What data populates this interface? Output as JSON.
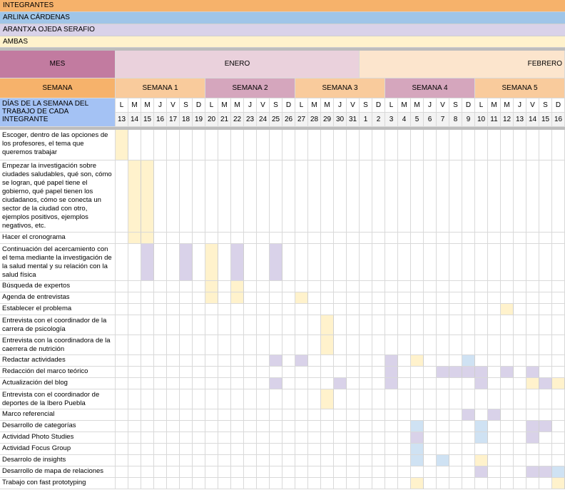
{
  "legend": {
    "integrantes": "INTEGRANTES",
    "member1": "ARLINA CÁRDENAS",
    "member2": "ARANTXA OJEDA SERAFIO",
    "both": "AMBAS"
  },
  "colors": {
    "integrantes": "#f6b26b",
    "member1": "#9fc5e8",
    "member2": "#d9d2e9",
    "both": "#fff2cc",
    "mes_label": "#c27ba0",
    "enero": "#ead1dc",
    "febrero": "#fce5cd",
    "semana_label": "#f6b26b",
    "week_a": "#f9cb9c",
    "week_b": "#d5a6bd",
    "dias_label": "#a4c2f4",
    "mark_yellow": "#fff2cc",
    "mark_purple": "#d9d2e9",
    "mark_blue": "#cfe2f3"
  },
  "header": {
    "mes_label": "MES",
    "enero": "ENERO",
    "febrero": "FEBRERO",
    "semana_label": "SEMANA",
    "weeks": [
      "SEMANA 1",
      "SEMANA 2",
      "SEMANA 3",
      "SEMANA 4",
      "SEMANA 5"
    ],
    "dias_label": "DÍAS DE LA SEMANA DEL TRABAJO DE CADA INTEGRANTE",
    "day_letters": [
      "L",
      "M",
      "M",
      "J",
      "V",
      "S",
      "D",
      "L",
      "M",
      "M",
      "J",
      "V",
      "S",
      "D",
      "L",
      "M",
      "M",
      "J",
      "V",
      "S",
      "D",
      "L",
      "M",
      "M",
      "J",
      "V",
      "S",
      "D",
      "L",
      "M",
      "M",
      "J",
      "V",
      "S",
      "D"
    ],
    "day_numbers": [
      "13",
      "14",
      "15",
      "16",
      "17",
      "18",
      "19",
      "20",
      "21",
      "22",
      "23",
      "24",
      "25",
      "26",
      "27",
      "28",
      "29",
      "30",
      "31",
      "1",
      "2",
      "3",
      "4",
      "5",
      "6",
      "7",
      "8",
      "9",
      "10",
      "11",
      "12",
      "13",
      "14",
      "15",
      "16"
    ]
  },
  "tasks": [
    {
      "label": "Escoger, dentro de las opciones de los profesores, el tema que queremos trabajar",
      "marks": [
        [
          0,
          "y"
        ]
      ]
    },
    {
      "label": "Empezar la investigación sobre ciudades saludables, qué son, cómo se logran, qué papel tiene el gobierno, qué papel tienen los ciudadanos, cómo se conecta un sector de la ciudad con otro, ejemplos positivos, ejemplos negativos, etc.",
      "marks": [
        [
          1,
          "y"
        ],
        [
          2,
          "y"
        ]
      ]
    },
    {
      "label": "Hacer el cronograma",
      "marks": [
        [
          1,
          "y"
        ],
        [
          2,
          "y"
        ]
      ]
    },
    {
      "label": "Continuación del acercamiento con el tema mediante la investigación de la salud mental y su relación con la salud física",
      "marks": [
        [
          2,
          "p"
        ],
        [
          5,
          "p"
        ],
        [
          7,
          "y"
        ],
        [
          9,
          "p"
        ],
        [
          12,
          "p"
        ]
      ]
    },
    {
      "label": "Búsqueda de expertos",
      "marks": [
        [
          7,
          "y"
        ],
        [
          9,
          "y"
        ]
      ]
    },
    {
      "label": "Agenda de entrevistas",
      "marks": [
        [
          7,
          "y"
        ],
        [
          9,
          "y"
        ],
        [
          14,
          "y"
        ]
      ]
    },
    {
      "label": "Establecer el problema",
      "marks": [
        [
          30,
          "y"
        ]
      ]
    },
    {
      "label": "Entrevista con el coordinador de la carrera de psicología",
      "marks": [
        [
          16,
          "y"
        ]
      ]
    },
    {
      "label": "Entrevista con la coordinadora de la caerrera de nutrición",
      "marks": [
        [
          16,
          "y"
        ]
      ]
    },
    {
      "label": "Redactar actividades",
      "marks": [
        [
          12,
          "p"
        ],
        [
          14,
          "p"
        ],
        [
          21,
          "p"
        ],
        [
          23,
          "y"
        ],
        [
          27,
          "b"
        ]
      ]
    },
    {
      "label": "Redacción del marco teórico",
      "marks": [
        [
          21,
          "p"
        ],
        [
          25,
          "p"
        ],
        [
          26,
          "p"
        ],
        [
          27,
          "p"
        ],
        [
          28,
          "p"
        ],
        [
          30,
          "p"
        ],
        [
          32,
          "p"
        ]
      ]
    },
    {
      "label": "Actualización del blog",
      "marks": [
        [
          12,
          "p"
        ],
        [
          17,
          "p"
        ],
        [
          21,
          "p"
        ],
        [
          28,
          "p"
        ],
        [
          32,
          "y"
        ],
        [
          33,
          "p"
        ],
        [
          34,
          "y"
        ]
      ]
    },
    {
      "label": "Entrevista con el coordinador de deportes de la Ibero Puebla",
      "marks": [
        [
          16,
          "y"
        ]
      ]
    },
    {
      "label": "Marco referencial",
      "marks": [
        [
          27,
          "p"
        ],
        [
          29,
          "p"
        ]
      ]
    },
    {
      "label": "Desarrollo de categorías",
      "marks": [
        [
          23,
          "b"
        ],
        [
          28,
          "b"
        ],
        [
          32,
          "p"
        ],
        [
          33,
          "p"
        ]
      ]
    },
    {
      "label": "Actividad Photo Studies",
      "marks": [
        [
          23,
          "p"
        ],
        [
          28,
          "b"
        ],
        [
          32,
          "p"
        ]
      ]
    },
    {
      "label": "Actividad Focus Group",
      "marks": [
        [
          23,
          "b"
        ]
      ]
    },
    {
      "label": "Desarrolo de insights",
      "marks": [
        [
          23,
          "b"
        ],
        [
          25,
          "b"
        ],
        [
          28,
          "y"
        ]
      ]
    },
    {
      "label": "Desarrollo de mapa de relaciones",
      "marks": [
        [
          28,
          "p"
        ],
        [
          32,
          "p"
        ],
        [
          33,
          "p"
        ],
        [
          34,
          "b"
        ]
      ]
    },
    {
      "label": "Trabajo con fast prototyping",
      "marks": [
        [
          23,
          "y"
        ],
        [
          34,
          "y"
        ]
      ]
    }
  ]
}
